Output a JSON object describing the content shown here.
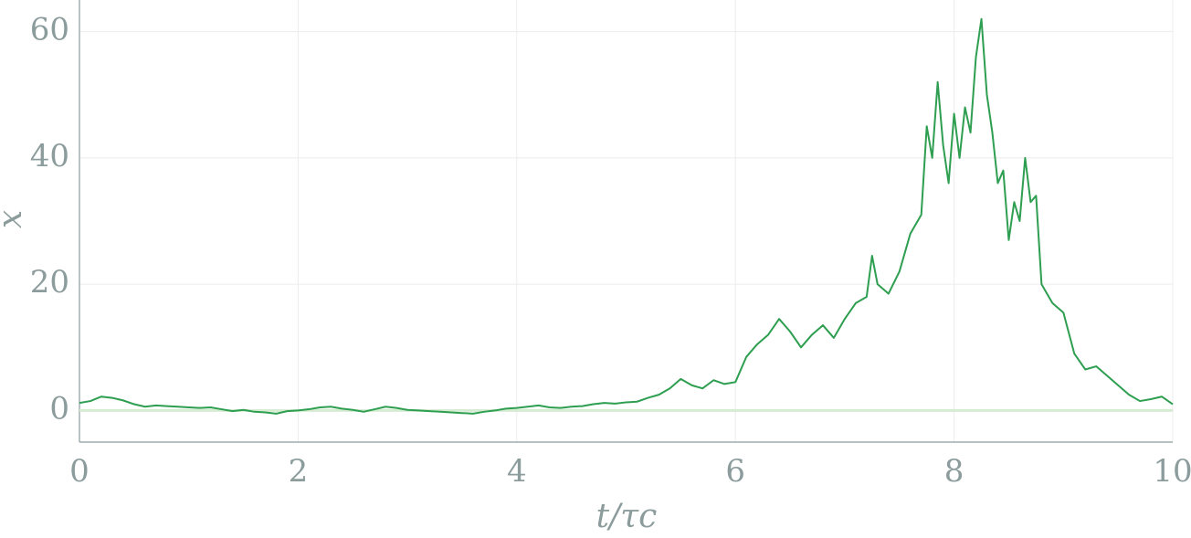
{
  "chart_data": {
    "type": "line",
    "xlabel": "t/τc",
    "ylabel": "x",
    "xlim": [
      0,
      10
    ],
    "ylim": [
      -5,
      65
    ],
    "xticks": [
      0,
      2,
      4,
      6,
      8,
      10
    ],
    "yticks": [
      0,
      20,
      40,
      60
    ],
    "grid": true,
    "series": [
      {
        "color": "#d6ecd2",
        "x": [
          0,
          10
        ],
        "values": [
          0,
          0
        ]
      },
      {
        "color": "#2e9e50",
        "x": [
          0,
          0.1,
          0.2,
          0.3,
          0.4,
          0.5,
          0.6,
          0.7,
          0.8,
          0.9,
          1.0,
          1.1,
          1.2,
          1.3,
          1.4,
          1.5,
          1.6,
          1.7,
          1.8,
          1.9,
          2.0,
          2.1,
          2.2,
          2.3,
          2.4,
          2.5,
          2.6,
          2.7,
          2.8,
          2.9,
          3.0,
          3.1,
          3.2,
          3.3,
          3.4,
          3.5,
          3.6,
          3.7,
          3.8,
          3.9,
          4.0,
          4.1,
          4.2,
          4.3,
          4.4,
          4.5,
          4.6,
          4.7,
          4.8,
          4.9,
          5.0,
          5.1,
          5.2,
          5.3,
          5.4,
          5.5,
          5.6,
          5.7,
          5.8,
          5.9,
          6.0,
          6.1,
          6.2,
          6.3,
          6.4,
          6.5,
          6.6,
          6.7,
          6.8,
          6.9,
          7.0,
          7.1,
          7.2,
          7.25,
          7.3,
          7.4,
          7.5,
          7.6,
          7.7,
          7.75,
          7.8,
          7.85,
          7.9,
          7.95,
          8.0,
          8.05,
          8.1,
          8.15,
          8.2,
          8.25,
          8.3,
          8.35,
          8.4,
          8.45,
          8.5,
          8.55,
          8.6,
          8.65,
          8.7,
          8.75,
          8.8,
          8.9,
          9.0,
          9.1,
          9.2,
          9.3,
          9.4,
          9.5,
          9.6,
          9.7,
          9.8,
          9.9,
          10.0
        ],
        "values": [
          1.2,
          1.5,
          2.2,
          2.0,
          1.6,
          1.0,
          0.6,
          0.8,
          0.7,
          0.6,
          0.5,
          0.4,
          0.5,
          0.2,
          -0.1,
          0.1,
          -0.2,
          -0.3,
          -0.5,
          -0.1,
          0.0,
          0.2,
          0.5,
          0.6,
          0.3,
          0.1,
          -0.2,
          0.2,
          0.6,
          0.4,
          0.1,
          0.0,
          -0.1,
          -0.2,
          -0.3,
          -0.4,
          -0.5,
          -0.2,
          0.0,
          0.3,
          0.4,
          0.6,
          0.8,
          0.5,
          0.4,
          0.6,
          0.7,
          1.0,
          1.2,
          1.1,
          1.3,
          1.4,
          2.0,
          2.5,
          3.5,
          5.0,
          4.0,
          3.5,
          4.8,
          4.2,
          4.5,
          8.5,
          10.5,
          12.0,
          14.5,
          12.5,
          10.0,
          12.0,
          13.5,
          11.5,
          14.5,
          17.0,
          18.0,
          24.5,
          20.0,
          18.5,
          22.0,
          28.0,
          31.0,
          45.0,
          40.0,
          52.0,
          42.0,
          36.0,
          47.0,
          40.0,
          48.0,
          44.0,
          56.0,
          62.0,
          50.0,
          44.0,
          36.0,
          38.0,
          27.0,
          33.0,
          30.0,
          40.0,
          33.0,
          34.0,
          20.0,
          17.0,
          15.5,
          9.0,
          6.5,
          7.0,
          5.5,
          4.0,
          2.5,
          1.5,
          1.8,
          2.2,
          1.0
        ]
      }
    ]
  }
}
